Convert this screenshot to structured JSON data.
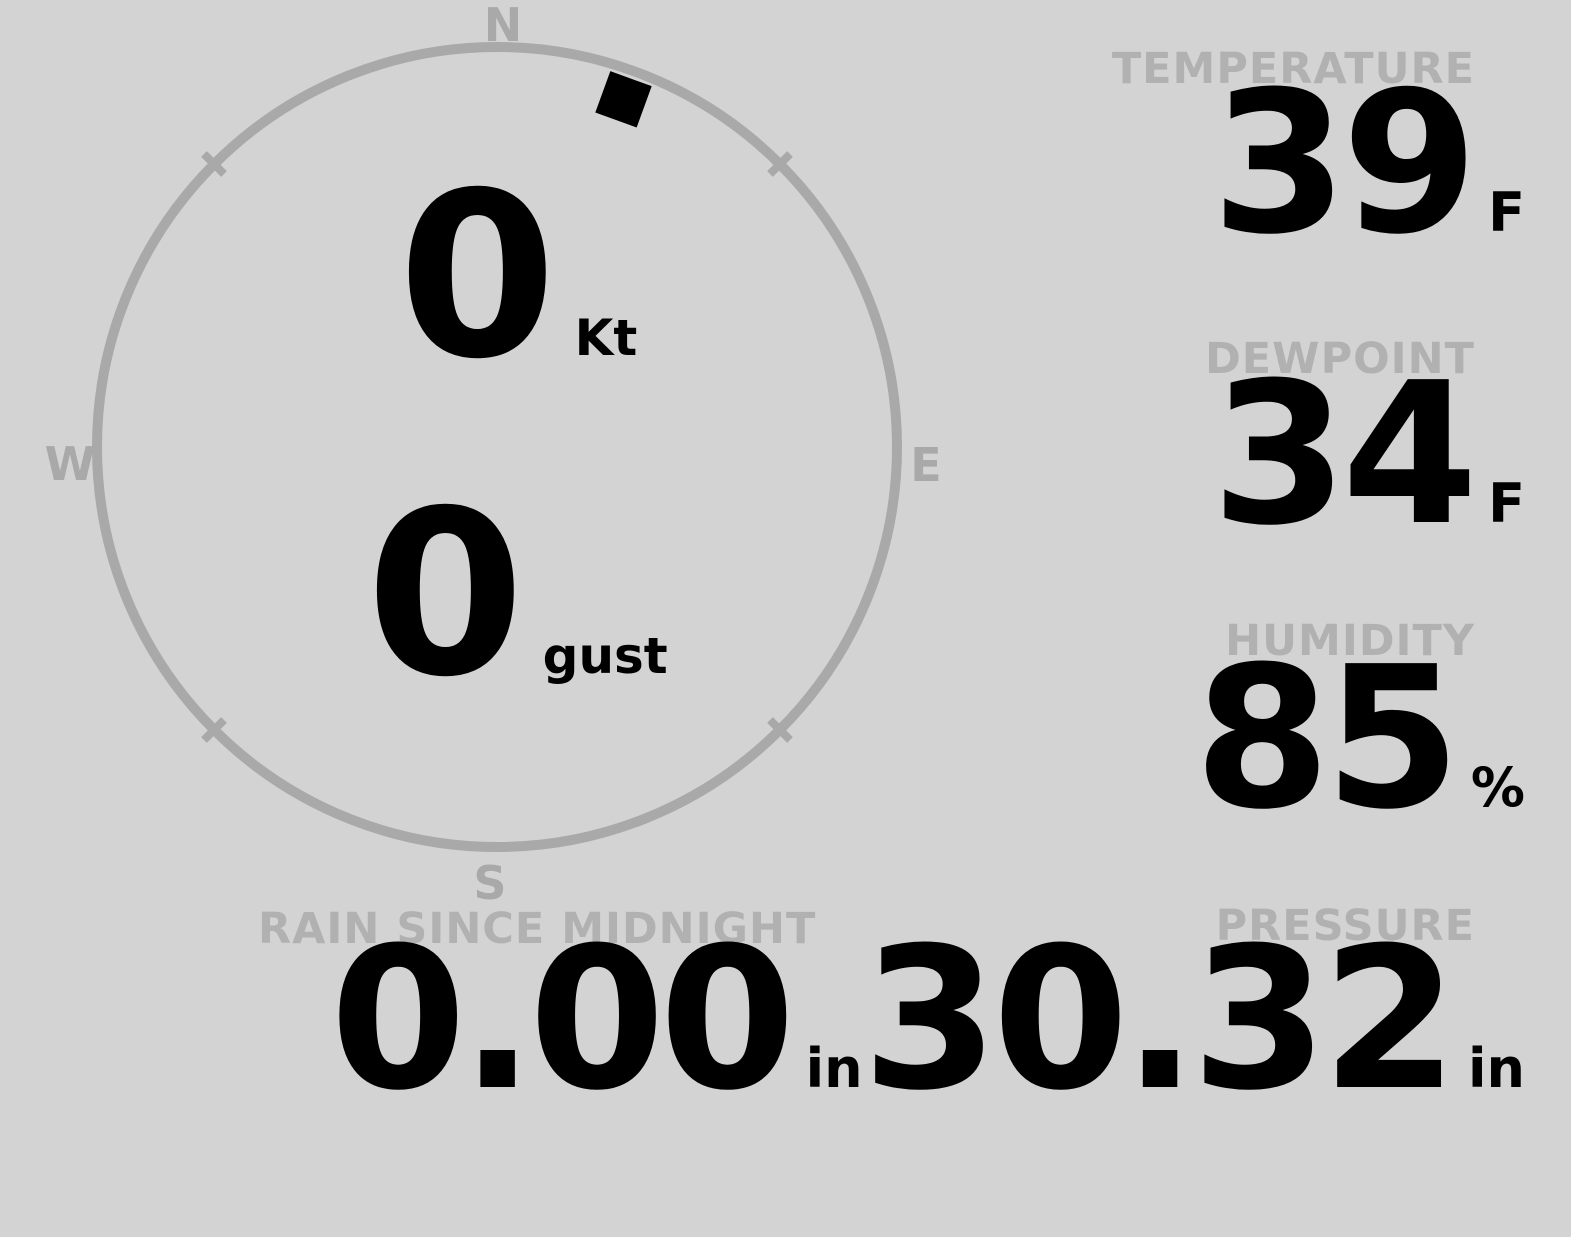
{
  "theme": {
    "background": "#d3d3d3",
    "value_color": "#000000",
    "label_color": "#b1b1b1",
    "compass_color": "#a9a9a9",
    "marker_color": "#000000"
  },
  "compass": {
    "cardinals": {
      "north": "N",
      "east": "E",
      "south": "S",
      "west": "W"
    },
    "wind_direction_deg": 20,
    "speed": {
      "value": "0",
      "unit": "Kt"
    },
    "gust": {
      "value": "0",
      "unit": "gust"
    }
  },
  "metrics": {
    "temperature": {
      "label": "TEMPERATURE",
      "value": "39",
      "unit": "F"
    },
    "dewpoint": {
      "label": "DEWPOINT",
      "value": "34",
      "unit": "F"
    },
    "humidity": {
      "label": "HUMIDITY",
      "value": "85",
      "unit": "%"
    },
    "rain_since_midnight": {
      "label": "RAIN SINCE MIDNIGHT",
      "value": "0.00",
      "unit": "in"
    },
    "pressure": {
      "label": "PRESSURE",
      "value": "30.32",
      "unit": "in"
    }
  }
}
